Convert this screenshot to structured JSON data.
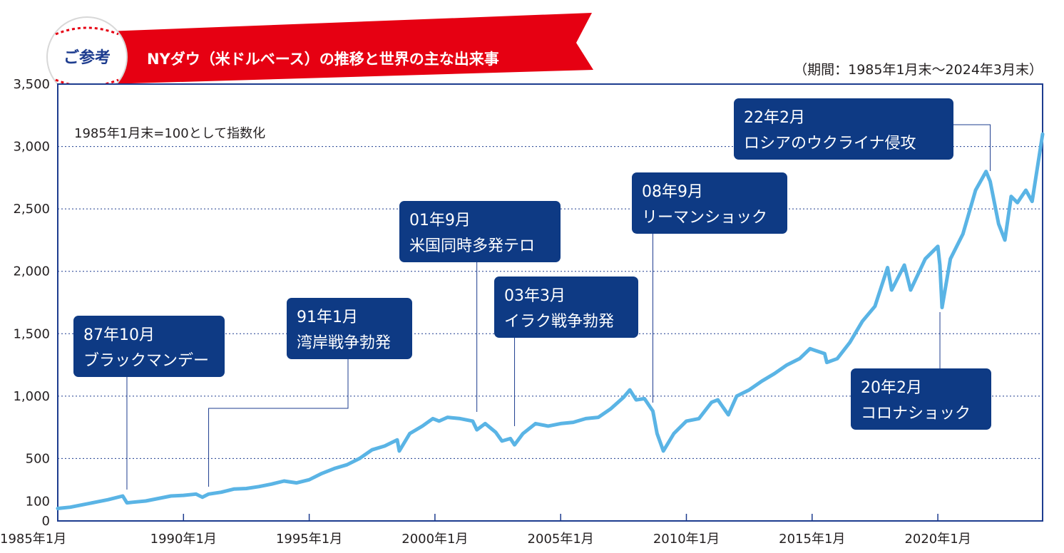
{
  "header": {
    "badge_label": "ご参考",
    "title": "NYダウ（米ドルベース）の推移と世界の主な出来事",
    "period_note": "（期間：1985年1月末～2024年3月末）"
  },
  "colors": {
    "line": "#5ab4e5",
    "frame": "#1d3c8f",
    "annotation_box": "#0e3a84",
    "banner": "#e60012",
    "grid": "#1d3c8f"
  },
  "chart_data": {
    "type": "line",
    "title": "NYダウ（米ドルベース）の推移と世界の主な出来事",
    "note": "1985年1月末=100として指数化",
    "xlabel": "",
    "ylabel": "",
    "xlim": [
      "1985-01",
      "2024-03"
    ],
    "ylim": [
      0,
      3500
    ],
    "yticks": [
      0,
      100,
      500,
      1000,
      1500,
      2000,
      2500,
      3000,
      3500
    ],
    "ytick_labels": [
      "0",
      "100",
      "500",
      "1,000",
      "1,500",
      "2,000",
      "2,500",
      "3,000",
      "3,500"
    ],
    "xticks": [
      "1985-01",
      "1990-01",
      "1995-01",
      "2000-01",
      "2005-01",
      "2010-01",
      "2015-01",
      "2020-01"
    ],
    "xtick_labels": [
      "1985年1月",
      "1990年1月",
      "1995年1月",
      "2000年1月",
      "2005年1月",
      "2010年1月",
      "2015年1月",
      "2020年1月"
    ],
    "gridlines": "horizontal-dotted",
    "series": [
      {
        "x": [
          "1985-01",
          "1985-07",
          "1986-01",
          "1986-07",
          "1987-01",
          "1987-08",
          "1987-10",
          "1988-01",
          "1988-07",
          "1989-01",
          "1989-07",
          "1990-01",
          "1990-07",
          "1990-10",
          "1991-01",
          "1991-07",
          "1992-01",
          "1992-07",
          "1993-01",
          "1993-07",
          "1994-01",
          "1994-07",
          "1995-01",
          "1995-07",
          "1996-01",
          "1996-07",
          "1997-01",
          "1997-07",
          "1998-01",
          "1998-07",
          "1998-08",
          "1999-01",
          "1999-07",
          "1999-12",
          "2000-03",
          "2000-07",
          "2001-01",
          "2001-07",
          "2001-09",
          "2002-01",
          "2002-06",
          "2002-09",
          "2003-01",
          "2003-03",
          "2003-07",
          "2004-01",
          "2004-07",
          "2005-01",
          "2005-07",
          "2006-01",
          "2006-07",
          "2007-01",
          "2007-07",
          "2007-10",
          "2008-01",
          "2008-05",
          "2008-09",
          "2008-11",
          "2009-02",
          "2009-07",
          "2010-01",
          "2010-07",
          "2011-01",
          "2011-04",
          "2011-09",
          "2012-01",
          "2012-07",
          "2013-01",
          "2013-07",
          "2014-01",
          "2014-07",
          "2014-12",
          "2015-07",
          "2015-08",
          "2016-01",
          "2016-07",
          "2017-01",
          "2017-07",
          "2018-01",
          "2018-03",
          "2018-09",
          "2018-12",
          "2019-07",
          "2020-01",
          "2020-02",
          "2020-03",
          "2020-07",
          "2021-01",
          "2021-07",
          "2021-12",
          "2022-02",
          "2022-06",
          "2022-09",
          "2022-12",
          "2023-03",
          "2023-07",
          "2023-10",
          "2024-03"
        ],
        "values": [
          100,
          110,
          130,
          150,
          170,
          200,
          145,
          150,
          160,
          180,
          200,
          205,
          215,
          190,
          215,
          230,
          255,
          260,
          275,
          295,
          320,
          305,
          330,
          380,
          420,
          450,
          500,
          570,
          600,
          650,
          560,
          700,
          760,
          820,
          800,
          830,
          820,
          800,
          730,
          780,
          710,
          640,
          660,
          610,
          700,
          780,
          760,
          780,
          790,
          820,
          830,
          900,
          990,
          1050,
          970,
          980,
          880,
          700,
          560,
          700,
          800,
          820,
          950,
          970,
          850,
          1000,
          1050,
          1120,
          1180,
          1250,
          1300,
          1380,
          1340,
          1270,
          1300,
          1430,
          1600,
          1720,
          2030,
          1850,
          2050,
          1850,
          2100,
          2200,
          2050,
          1710,
          2100,
          2300,
          2650,
          2800,
          2720,
          2380,
          2250,
          2600,
          2550,
          2650,
          2560,
          3100
        ]
      }
    ],
    "annotations": [
      {
        "date": "1987-10",
        "line1": "87年10月",
        "line2": "ブラックマンデー"
      },
      {
        "date": "1991-01",
        "line1": "91年1月",
        "line2": "湾岸戦争勃発"
      },
      {
        "date": "2001-09",
        "line1": "01年9月",
        "line2": "米国同時多発テロ"
      },
      {
        "date": "2003-03",
        "line1": "03年3月",
        "line2": "イラク戦争勃発"
      },
      {
        "date": "2008-09",
        "line1": "08年9月",
        "line2": "リーマンショック"
      },
      {
        "date": "2020-02",
        "line1": "20年2月",
        "line2": "コロナショック"
      },
      {
        "date": "2022-02",
        "line1": "22年2月",
        "line2": "ロシアのウクライナ侵攻"
      }
    ]
  }
}
